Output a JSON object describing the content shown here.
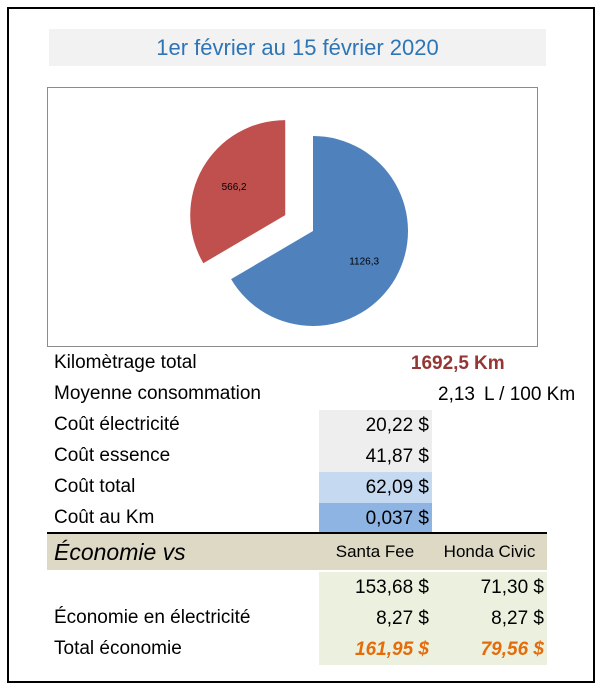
{
  "title": "1er février au 15 février 2020",
  "chart_data": {
    "type": "pie",
    "values": [
      1126.3,
      566.2
    ],
    "value_labels": [
      "1126,3",
      "566,2"
    ],
    "colors": [
      "#4f81bd",
      "#c0504d"
    ],
    "exploded": [
      false,
      true
    ],
    "title": "",
    "legend": "none"
  },
  "summary": {
    "km_total": {
      "label": "Kilomètrage total",
      "value": "1692,5",
      "unit": "Km"
    },
    "avg_consumption": {
      "label": "Moyenne consommation",
      "value": "2,13",
      "unit": "L / 100 Km"
    },
    "elec_cost": {
      "label": "Coût électricité",
      "value": "20,22 $"
    },
    "gas_cost": {
      "label": "Coût essence",
      "value": "41,87 $"
    },
    "total_cost": {
      "label": "Coût total",
      "value": "62,09 $"
    },
    "cost_per_km": {
      "label": "Coût au Km",
      "value": "0,037 $"
    }
  },
  "economy": {
    "title": "Économie vs",
    "col1": "Santa Fee",
    "col2": "Honda Civic",
    "rows": [
      {
        "label": "",
        "v1": "153,68 $",
        "v2": "71,30 $"
      },
      {
        "label": "Économie en électricité",
        "v1": "8,27 $",
        "v2": "8,27 $"
      },
      {
        "label": "Total économie",
        "v1": "161,95 $",
        "v2": "79,56 $"
      }
    ]
  },
  "colors": {
    "title_text": "#2e75b6",
    "km_value": "#943634",
    "total_economy": "#e46c0a",
    "cost_fill_light": "#eeeeee",
    "cost_fill_blue_light": "#c5d9f1",
    "cost_fill_blue": "#8db4e2",
    "economy_header": "#ddd9c4",
    "economy_green": "#ebf1de"
  }
}
